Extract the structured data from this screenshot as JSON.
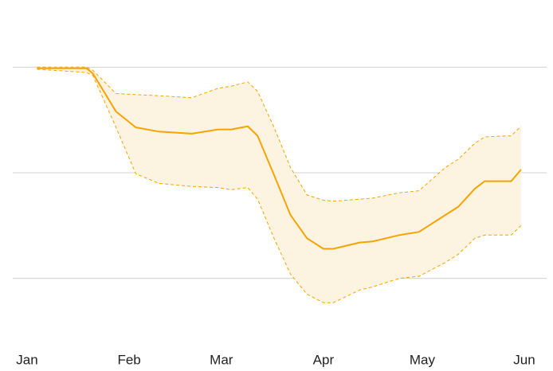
{
  "chart_data": {
    "type": "line",
    "x": [
      3,
      18,
      20,
      27,
      33,
      40,
      50,
      58,
      62,
      67,
      70,
      75,
      80,
      85,
      90,
      93,
      101,
      105,
      113,
      119,
      127,
      131,
      136,
      139,
      147,
      150
    ],
    "series": [
      {
        "color": "#f5a300",
        "values": [
          1.99,
          1.99,
          1.94,
          1.58,
          1.43,
          1.39,
          1.37,
          1.41,
          1.41,
          1.44,
          1.35,
          0.98,
          0.6,
          0.38,
          0.28,
          0.28,
          0.34,
          0.35,
          0.41,
          0.44,
          0.6,
          0.68,
          0.85,
          0.92,
          0.92,
          1.03
        ]
      }
    ],
    "band": {
      "color": "#fdf3e1",
      "line_color": "#f5a300",
      "upper": [
        2.0,
        2.0,
        1.97,
        1.75,
        1.74,
        1.73,
        1.71,
        1.8,
        1.82,
        1.86,
        1.77,
        1.43,
        1.05,
        0.79,
        0.74,
        0.73,
        0.75,
        0.76,
        0.81,
        0.83,
        1.05,
        1.13,
        1.28,
        1.34,
        1.35,
        1.44
      ],
      "lower": [
        1.98,
        1.95,
        1.92,
        1.43,
        0.99,
        0.9,
        0.87,
        0.86,
        0.84,
        0.86,
        0.75,
        0.38,
        0.04,
        -0.15,
        -0.23,
        -0.23,
        -0.11,
        -0.08,
        0,
        0.02,
        0.15,
        0.23,
        0.38,
        0.41,
        0.41,
        0.5
      ]
    },
    "xlim": [
      0,
      151
    ],
    "xticks": [
      {
        "value": 0,
        "label": "Jan"
      },
      {
        "value": 31,
        "label": "Feb"
      },
      {
        "value": 59,
        "label": "Mar"
      },
      {
        "value": 90,
        "label": "Apr"
      },
      {
        "value": 120,
        "label": "May"
      },
      {
        "value": 151,
        "label": "Jun"
      }
    ],
    "ylim": [
      -0.5,
      2.5
    ],
    "yticks": [
      0,
      1,
      2
    ],
    "grid": true
  }
}
